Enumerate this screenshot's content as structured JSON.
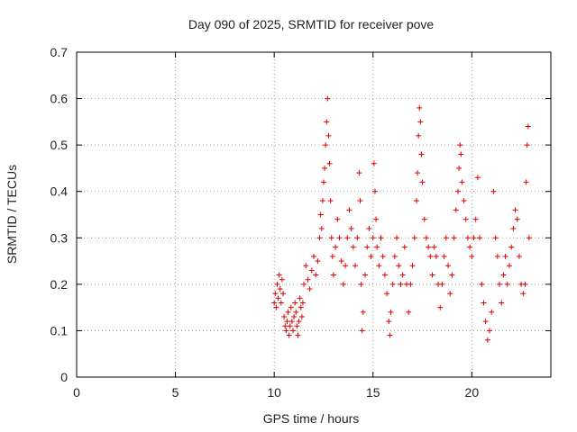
{
  "chart_data": {
    "type": "scatter",
    "title": "Day 090 of 2025, SRMTID for receiver pove",
    "xlabel": "GPS time / hours",
    "ylabel": "SRMTID / TECUs",
    "xlim": [
      0,
      24
    ],
    "ylim": [
      0,
      0.7
    ],
    "x_ticks": [
      0,
      5,
      10,
      15,
      20
    ],
    "y_ticks": [
      0,
      0.1,
      0.2,
      0.3,
      0.4,
      0.5,
      0.6,
      0.7
    ],
    "grid": true,
    "marker": "+",
    "color": "#dd0000",
    "series": [
      {
        "points": [
          [
            10.0,
            0.16
          ],
          [
            10.05,
            0.18
          ],
          [
            10.1,
            0.15
          ],
          [
            10.15,
            0.2
          ],
          [
            10.2,
            0.17
          ],
          [
            10.25,
            0.22
          ],
          [
            10.3,
            0.19
          ],
          [
            10.35,
            0.16
          ],
          [
            10.4,
            0.21
          ],
          [
            10.45,
            0.18
          ],
          [
            10.5,
            0.13
          ],
          [
            10.55,
            0.11
          ],
          [
            10.6,
            0.1
          ],
          [
            10.65,
            0.12
          ],
          [
            10.7,
            0.14
          ],
          [
            10.75,
            0.09
          ],
          [
            10.8,
            0.11
          ],
          [
            10.85,
            0.15
          ],
          [
            10.9,
            0.12
          ],
          [
            10.95,
            0.1
          ],
          [
            11.0,
            0.13
          ],
          [
            11.05,
            0.16
          ],
          [
            11.1,
            0.14
          ],
          [
            11.15,
            0.11
          ],
          [
            11.2,
            0.09
          ],
          [
            11.25,
            0.12
          ],
          [
            11.3,
            0.17
          ],
          [
            11.35,
            0.15
          ],
          [
            11.4,
            0.13
          ],
          [
            11.45,
            0.16
          ],
          [
            11.5,
            0.2
          ],
          [
            11.6,
            0.24
          ],
          [
            11.7,
            0.21
          ],
          [
            11.8,
            0.19
          ],
          [
            11.9,
            0.23
          ],
          [
            12.0,
            0.26
          ],
          [
            12.1,
            0.22
          ],
          [
            12.2,
            0.25
          ],
          [
            12.3,
            0.3
          ],
          [
            12.35,
            0.35
          ],
          [
            12.4,
            0.32
          ],
          [
            12.45,
            0.38
          ],
          [
            12.5,
            0.42
          ],
          [
            12.55,
            0.45
          ],
          [
            12.6,
            0.5
          ],
          [
            12.65,
            0.55
          ],
          [
            12.7,
            0.6
          ],
          [
            12.75,
            0.52
          ],
          [
            12.8,
            0.46
          ],
          [
            12.85,
            0.38
          ],
          [
            12.9,
            0.3
          ],
          [
            12.95,
            0.26
          ],
          [
            13.0,
            0.22
          ],
          [
            13.1,
            0.28
          ],
          [
            13.2,
            0.34
          ],
          [
            13.3,
            0.3
          ],
          [
            13.4,
            0.25
          ],
          [
            13.5,
            0.2
          ],
          [
            13.6,
            0.24
          ],
          [
            13.7,
            0.3
          ],
          [
            13.8,
            0.36
          ],
          [
            13.9,
            0.32
          ],
          [
            14.0,
            0.28
          ],
          [
            14.1,
            0.24
          ],
          [
            14.2,
            0.3
          ],
          [
            14.3,
            0.44
          ],
          [
            14.35,
            0.38
          ],
          [
            14.4,
            0.2
          ],
          [
            14.45,
            0.1
          ],
          [
            14.5,
            0.14
          ],
          [
            14.6,
            0.22
          ],
          [
            14.7,
            0.28
          ],
          [
            14.8,
            0.32
          ],
          [
            14.9,
            0.26
          ],
          [
            15.0,
            0.3
          ],
          [
            15.05,
            0.46
          ],
          [
            15.1,
            0.4
          ],
          [
            15.15,
            0.34
          ],
          [
            15.2,
            0.28
          ],
          [
            15.3,
            0.24
          ],
          [
            15.4,
            0.3
          ],
          [
            15.5,
            0.26
          ],
          [
            15.6,
            0.22
          ],
          [
            15.7,
            0.18
          ],
          [
            15.8,
            0.12
          ],
          [
            15.85,
            0.09
          ],
          [
            15.9,
            0.14
          ],
          [
            16.0,
            0.2
          ],
          [
            16.1,
            0.26
          ],
          [
            16.2,
            0.3
          ],
          [
            16.3,
            0.24
          ],
          [
            16.4,
            0.2
          ],
          [
            16.5,
            0.22
          ],
          [
            16.6,
            0.28
          ],
          [
            16.7,
            0.2
          ],
          [
            16.8,
            0.14
          ],
          [
            16.9,
            0.2
          ],
          [
            17.0,
            0.24
          ],
          [
            17.1,
            0.3
          ],
          [
            17.2,
            0.38
          ],
          [
            17.25,
            0.44
          ],
          [
            17.3,
            0.52
          ],
          [
            17.35,
            0.58
          ],
          [
            17.4,
            0.55
          ],
          [
            17.45,
            0.48
          ],
          [
            17.5,
            0.42
          ],
          [
            17.6,
            0.34
          ],
          [
            17.7,
            0.3
          ],
          [
            17.8,
            0.28
          ],
          [
            17.9,
            0.26
          ],
          [
            18.0,
            0.22
          ],
          [
            18.1,
            0.28
          ],
          [
            18.2,
            0.26
          ],
          [
            18.3,
            0.2
          ],
          [
            18.4,
            0.15
          ],
          [
            18.5,
            0.2
          ],
          [
            18.6,
            0.26
          ],
          [
            18.7,
            0.3
          ],
          [
            18.8,
            0.24
          ],
          [
            18.9,
            0.18
          ],
          [
            19.0,
            0.22
          ],
          [
            19.1,
            0.3
          ],
          [
            19.2,
            0.36
          ],
          [
            19.3,
            0.4
          ],
          [
            19.35,
            0.45
          ],
          [
            19.4,
            0.5
          ],
          [
            19.45,
            0.48
          ],
          [
            19.5,
            0.42
          ],
          [
            19.6,
            0.38
          ],
          [
            19.7,
            0.34
          ],
          [
            19.8,
            0.3
          ],
          [
            19.9,
            0.28
          ],
          [
            20.0,
            0.26
          ],
          [
            20.1,
            0.3
          ],
          [
            20.2,
            0.34
          ],
          [
            20.3,
            0.43
          ],
          [
            20.4,
            0.3
          ],
          [
            20.5,
            0.2
          ],
          [
            20.6,
            0.16
          ],
          [
            20.7,
            0.12
          ],
          [
            20.8,
            0.08
          ],
          [
            20.9,
            0.1
          ],
          [
            21.0,
            0.14
          ],
          [
            21.1,
            0.4
          ],
          [
            21.2,
            0.3
          ],
          [
            21.3,
            0.26
          ],
          [
            21.4,
            0.2
          ],
          [
            21.5,
            0.16
          ],
          [
            21.6,
            0.22
          ],
          [
            21.7,
            0.26
          ],
          [
            21.8,
            0.2
          ],
          [
            21.9,
            0.24
          ],
          [
            22.0,
            0.28
          ],
          [
            22.1,
            0.32
          ],
          [
            22.2,
            0.36
          ],
          [
            22.3,
            0.34
          ],
          [
            22.4,
            0.26
          ],
          [
            22.5,
            0.2
          ],
          [
            22.6,
            0.18
          ],
          [
            22.7,
            0.2
          ],
          [
            22.75,
            0.42
          ],
          [
            22.8,
            0.5
          ],
          [
            22.85,
            0.54
          ],
          [
            22.9,
            0.3
          ]
        ]
      }
    ]
  }
}
